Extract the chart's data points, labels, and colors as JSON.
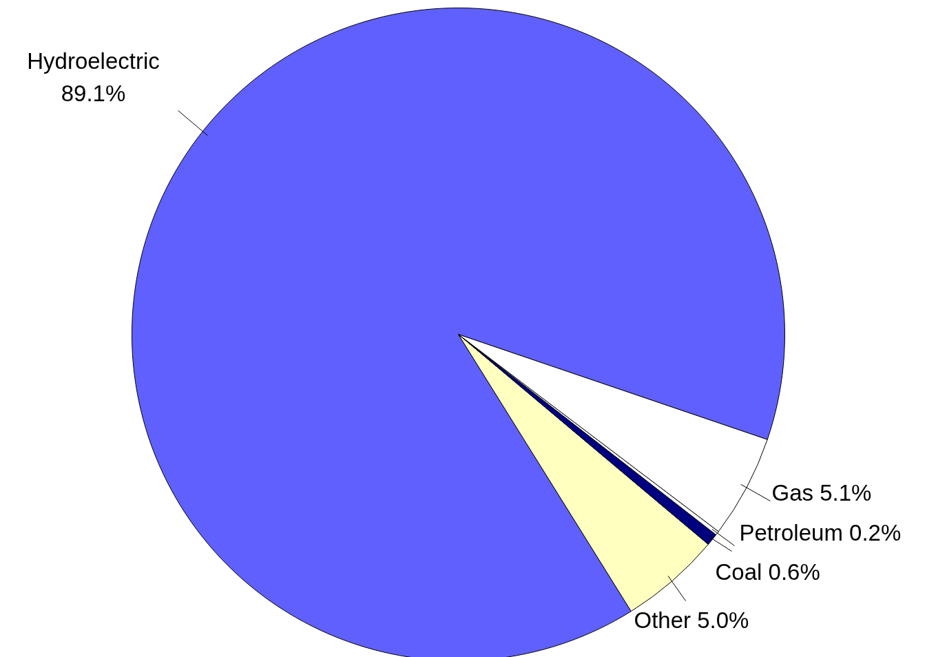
{
  "chart_data": {
    "type": "pie",
    "categories": [
      "Hydroelectric",
      "Other",
      "Coal",
      "Petroleum",
      "Gas"
    ],
    "values": [
      89.1,
      5.0,
      0.6,
      0.2,
      5.1
    ],
    "colors": [
      "#6060ff",
      "#ffffc0",
      "#000080",
      "#ffffff",
      "#ffffff"
    ],
    "value_labels": [
      "89.1%",
      "5.0%",
      "0.6%",
      "0.2%",
      "5.1%"
    ],
    "data_labels": true
  }
}
